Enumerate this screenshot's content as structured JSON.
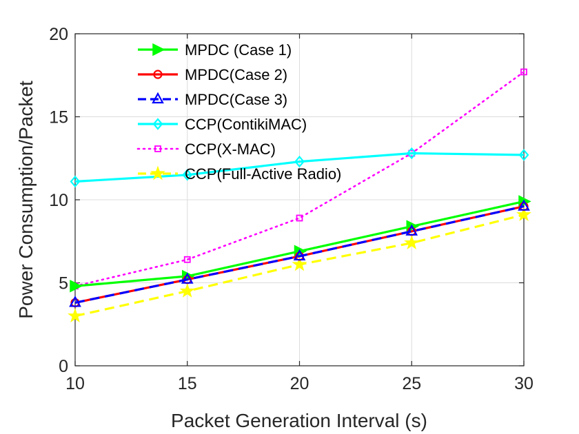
{
  "chart_data": {
    "type": "line",
    "title": "",
    "xlabel": "Packet Generation Interval (s)",
    "ylabel": "Power Consumption/Packet",
    "x": [
      10,
      15,
      20,
      25,
      30
    ],
    "xlim": [
      10,
      30
    ],
    "ylim": [
      0,
      20
    ],
    "xticks": [
      "10",
      "15",
      "20",
      "25",
      "30"
    ],
    "yticks": [
      "0",
      "5",
      "10",
      "15",
      "20"
    ],
    "grid": true,
    "legend_position": "top-center",
    "series": [
      {
        "name": "MPDC (Case 1)",
        "values": [
          4.8,
          5.4,
          6.9,
          8.4,
          9.9
        ],
        "color": "#00ff00",
        "marker": "triangle-right",
        "dash": "solid"
      },
      {
        "name": "MPDC(Case 2)",
        "values": [
          3.8,
          5.2,
          6.6,
          8.1,
          9.6
        ],
        "color": "#ff0000",
        "marker": "circle",
        "dash": "solid"
      },
      {
        "name": "MPDC(Case 3)",
        "values": [
          3.8,
          5.2,
          6.6,
          8.1,
          9.6
        ],
        "color": "#0000ff",
        "marker": "triangle-up",
        "dash": "dashed"
      },
      {
        "name": "CCP(ContikiMAC)",
        "values": [
          11.1,
          11.5,
          12.3,
          12.8,
          12.7
        ],
        "color": "#00ffff",
        "marker": "diamond",
        "dash": "solid"
      },
      {
        "name": "CCP(X-MAC)",
        "values": [
          4.8,
          6.4,
          8.9,
          12.8,
          17.7
        ],
        "color": "#ff00ff",
        "marker": "square",
        "dash": "dotted"
      },
      {
        "name": "CCP(Full-Active Radio)",
        "values": [
          3.0,
          4.5,
          6.1,
          7.4,
          9.1
        ],
        "color": "#ffff00",
        "marker": "star",
        "dash": "dashed"
      }
    ]
  }
}
